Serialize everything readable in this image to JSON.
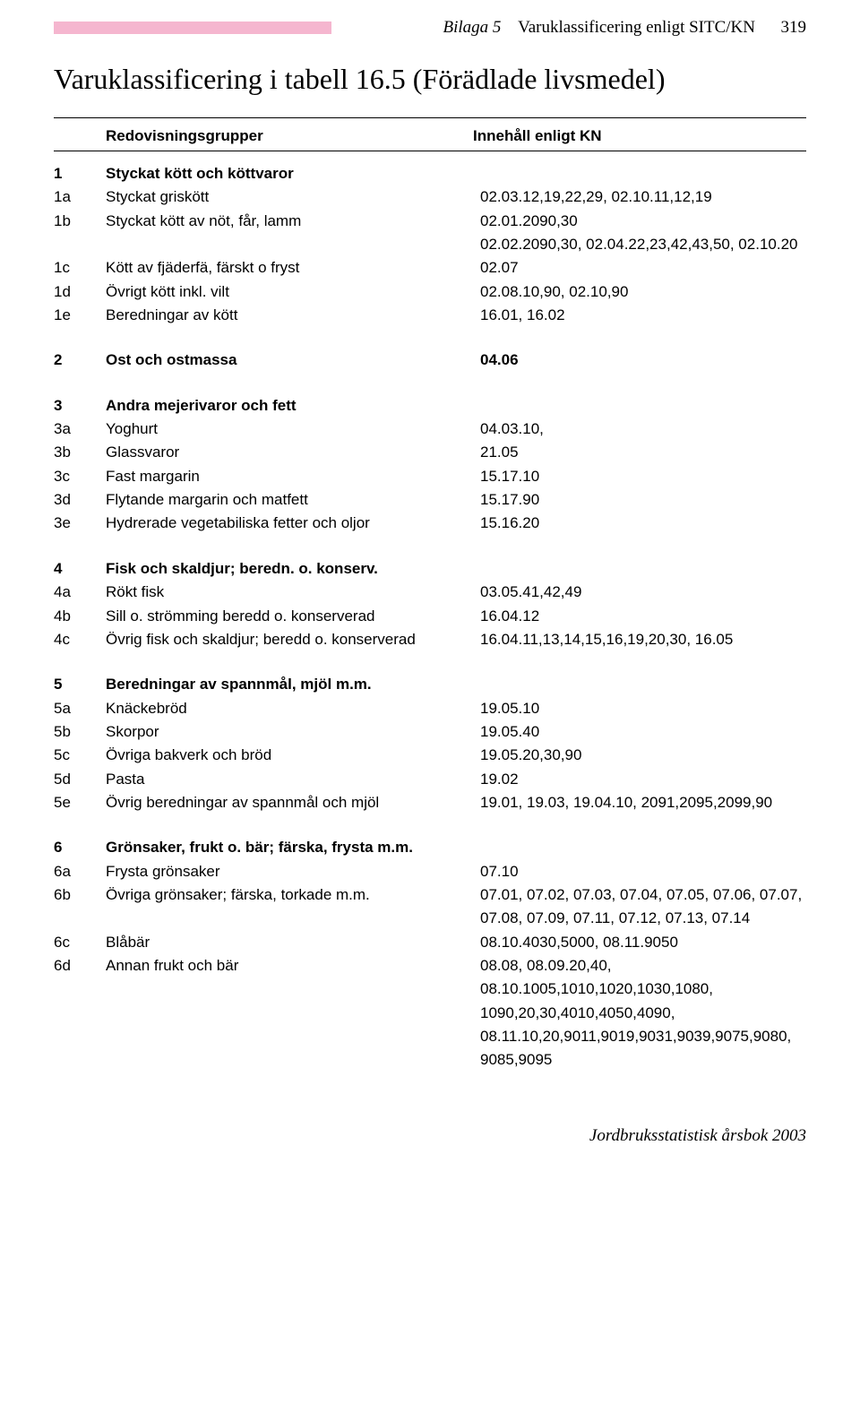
{
  "header": {
    "appendix": "Bilaga 5",
    "title": "Varuklassificering enligt SITC/KN",
    "page_number": "319"
  },
  "main_title": "Varuklassificering i tabell 16.5 (Förädlade livsmedel)",
  "column_headers": {
    "col1": "",
    "col2": "Redovisningsgrupper",
    "col3": "Innehåll enligt KN"
  },
  "groups": [
    {
      "rows": [
        {
          "c1": "1",
          "c2": "Styckat kött och köttvaror",
          "c3": "",
          "bold": true
        },
        {
          "c1": "1a",
          "c2": "Styckat griskött",
          "c3": "02.03.12,19,22,29, 02.10.11,12,19"
        },
        {
          "c1": "1b",
          "c2": "Styckat kött av nöt, får, lamm",
          "c3": "02.01.2090,30"
        },
        {
          "c1": "",
          "c2": "",
          "c3": "02.02.2090,30, 02.04.22,23,42,43,50, 02.10.20"
        },
        {
          "c1": "1c",
          "c2": "Kött av fjäderfä, färskt o fryst",
          "c3": "02.07"
        },
        {
          "c1": "1d",
          "c2": "Övrigt kött inkl. vilt",
          "c3": "02.08.10,90, 02.10,90"
        },
        {
          "c1": "1e",
          "c2": "Beredningar av kött",
          "c3": "16.01, 16.02"
        }
      ]
    },
    {
      "rows": [
        {
          "c1": "2",
          "c2": "Ost och ostmassa",
          "c3": "04.06",
          "bold": true
        }
      ]
    },
    {
      "rows": [
        {
          "c1": "3",
          "c2": "Andra mejerivaror och fett",
          "c3": "",
          "bold": true
        },
        {
          "c1": "3a",
          "c2": "Yoghurt",
          "c3": "04.03.10,"
        },
        {
          "c1": "3b",
          "c2": "Glassvaror",
          "c3": "21.05"
        },
        {
          "c1": "3c",
          "c2": "Fast margarin",
          "c3": "15.17.10"
        },
        {
          "c1": "3d",
          "c2": "Flytande margarin och matfett",
          "c3": "15.17.90"
        },
        {
          "c1": "3e",
          "c2": "Hydrerade vegetabiliska fetter och oljor",
          "c3": "15.16.20"
        }
      ]
    },
    {
      "rows": [
        {
          "c1": "4",
          "c2": "Fisk och skaldjur; beredn. o. konserv.",
          "c3": "",
          "bold": true
        },
        {
          "c1": "4a",
          "c2": "Rökt fisk",
          "c3": "03.05.41,42,49"
        },
        {
          "c1": "4b",
          "c2": "Sill o. strömming beredd o. konserverad",
          "c3": "16.04.12"
        },
        {
          "c1": "4c",
          "c2": "Övrig fisk och skaldjur; beredd o. konserverad",
          "c3": "16.04.11,13,14,15,16,19,20,30, 16.05"
        }
      ]
    },
    {
      "rows": [
        {
          "c1": "5",
          "c2": "Beredningar av spannmål, mjöl m.m.",
          "c3": "",
          "bold": true
        },
        {
          "c1": "5a",
          "c2": "Knäckebröd",
          "c3": "19.05.10"
        },
        {
          "c1": "5b",
          "c2": "Skorpor",
          "c3": "19.05.40"
        },
        {
          "c1": "5c",
          "c2": "Övriga bakverk och bröd",
          "c3": "19.05.20,30,90"
        },
        {
          "c1": "5d",
          "c2": "Pasta",
          "c3": "19.02"
        },
        {
          "c1": "5e",
          "c2": "Övrig beredningar av spannmål och mjöl",
          "c3": "19.01, 19.03, 19.04.10, 2091,2095,2099,90"
        }
      ]
    },
    {
      "rows": [
        {
          "c1": "6",
          "c2": "Grönsaker, frukt o. bär; färska, frysta m.m.",
          "c3": "",
          "bold": true
        },
        {
          "c1": "6a",
          "c2": "Frysta grönsaker",
          "c3": "07.10"
        },
        {
          "c1": "6b",
          "c2": "Övriga grönsaker; färska, torkade m.m.",
          "c3": "07.01, 07.02, 07.03, 07.04, 07.05, 07.06, 07.07,"
        },
        {
          "c1": "",
          "c2": "",
          "c3": "07.08, 07.09, 07.11, 07.12, 07.13, 07.14"
        },
        {
          "c1": "6c",
          "c2": "Blåbär",
          "c3": "08.10.4030,5000, 08.11.9050"
        },
        {
          "c1": "6d",
          "c2": "Annan frukt och bär",
          "c3": "08.08, 08.09.20,40,"
        },
        {
          "c1": "",
          "c2": "",
          "c3": "08.10.1005,1010,1020,1030,1080,"
        },
        {
          "c1": "",
          "c2": "",
          "c3": "1090,20,30,4010,4050,4090,"
        },
        {
          "c1": "",
          "c2": "",
          "c3": "08.11.10,20,9011,9019,9031,9039,9075,9080,"
        },
        {
          "c1": "",
          "c2": "",
          "c3": "9085,9095"
        }
      ]
    }
  ],
  "footer": "Jordbruksstatistisk årsbok 2003"
}
